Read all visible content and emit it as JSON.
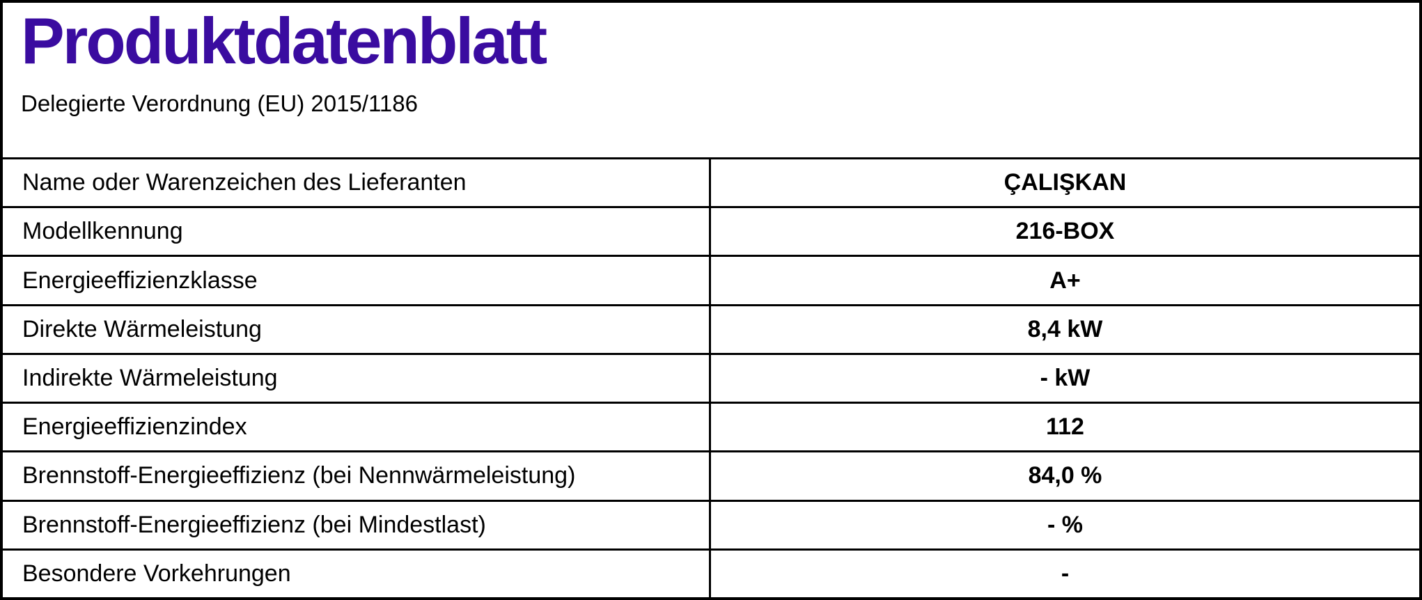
{
  "page": {
    "title": "Produktdatenblatt",
    "subtitle": "Delegierte Verordnung (EU) 2015/1186",
    "title_color": "#3A0CA0",
    "border_color": "#000000"
  },
  "table": {
    "rows": [
      {
        "label": "Name oder Warenzeichen des Lieferanten",
        "value": "ÇALIŞKAN"
      },
      {
        "label": "Modellkennung",
        "value": "216-BOX"
      },
      {
        "label": "Energieeffizienzklasse",
        "value": "A+"
      },
      {
        "label": "Direkte Wärmeleistung",
        "value": "8,4 kW"
      },
      {
        "label": "Indirekte Wärmeleistung",
        "value": "- kW"
      },
      {
        "label": "Energieeffizienzindex",
        "value": "112"
      },
      {
        "label": "Brennstoff-Energieeffizienz (bei Nennwärmeleistung)",
        "value": "84,0 %"
      },
      {
        "label": "Brennstoff-Energieeffizienz (bei Mindestlast)",
        "value": "- %"
      },
      {
        "label": "Besondere Vorkehrungen",
        "value": "-"
      }
    ]
  }
}
